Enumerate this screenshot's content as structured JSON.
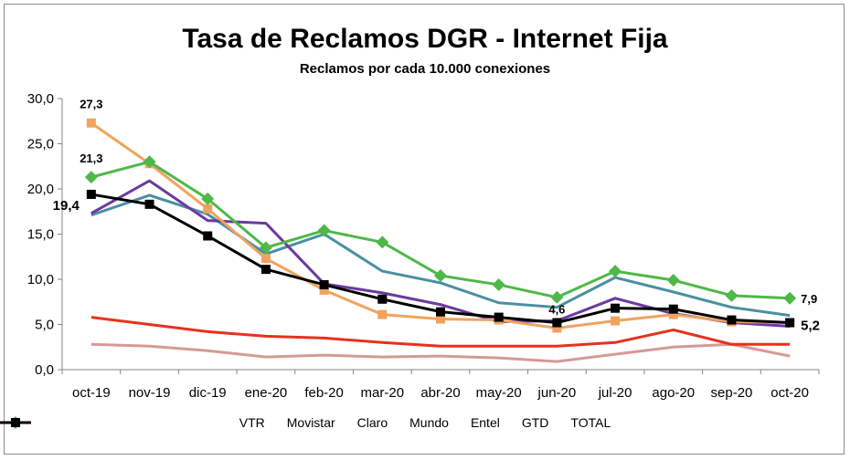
{
  "chart_data": {
    "type": "line",
    "title": "Tasa de Reclamos DGR - Internet Fija",
    "subtitle": "Reclamos por cada 10.000 conexiones",
    "xlabel": "",
    "ylabel": "",
    "categories": [
      "oct-19",
      "nov-19",
      "dic-19",
      "ene-20",
      "feb-20",
      "mar-20",
      "abr-20",
      "may-20",
      "jun-20",
      "jul-20",
      "ago-20",
      "sep-20",
      "oct-20"
    ],
    "ylim": [
      0,
      30
    ],
    "yticks": [
      "0,0",
      "5,0",
      "10,0",
      "15,0",
      "20,0",
      "25,0",
      "30,0"
    ],
    "grid": false,
    "legend_position": "bottom",
    "series": [
      {
        "name": "VTR",
        "color": "#f0a35e",
        "marker": "square",
        "values": [
          27.3,
          22.8,
          17.8,
          12.3,
          8.8,
          6.1,
          5.6,
          5.5,
          4.6,
          5.4,
          6.1,
          5.3,
          5.2
        ]
      },
      {
        "name": "Movistar",
        "color": "#4fb848",
        "marker": "diamond",
        "values": [
          21.3,
          23.0,
          18.9,
          13.5,
          15.4,
          14.1,
          10.4,
          9.4,
          8.0,
          10.9,
          9.9,
          8.2,
          7.9
        ]
      },
      {
        "name": "Claro",
        "color": "#e8311e",
        "marker": "none",
        "values": [
          5.8,
          5.0,
          4.2,
          3.7,
          3.5,
          3.0,
          2.6,
          2.6,
          2.6,
          3.0,
          4.4,
          2.8,
          2.8
        ]
      },
      {
        "name": "Mundo",
        "color": "#6a3a9e",
        "marker": "none",
        "values": [
          17.3,
          20.9,
          16.5,
          16.2,
          9.5,
          8.5,
          7.2,
          5.3,
          5.4,
          7.9,
          6.2,
          5.2,
          4.8
        ]
      },
      {
        "name": "Entel",
        "color": "#4a8fa1",
        "marker": "none",
        "values": [
          17.1,
          19.3,
          17.2,
          12.8,
          15.0,
          10.9,
          9.6,
          7.4,
          6.9,
          10.2,
          8.6,
          6.9,
          6.0
        ]
      },
      {
        "name": "GTD",
        "color": "#d59a96",
        "marker": "none",
        "values": [
          2.8,
          2.6,
          2.1,
          1.4,
          1.6,
          1.4,
          1.5,
          1.3,
          0.9,
          1.7,
          2.5,
          2.8,
          1.5
        ]
      },
      {
        "name": "TOTAL",
        "color": "#000000",
        "marker": "square",
        "values": [
          19.4,
          18.3,
          14.8,
          11.1,
          9.4,
          7.8,
          6.4,
          5.8,
          5.2,
          6.8,
          6.7,
          5.5,
          5.2
        ]
      }
    ],
    "annotations": [
      {
        "text": "27,3",
        "series": "VTR",
        "index": 0,
        "position": "above"
      },
      {
        "text": "21,3",
        "series": "Movistar",
        "index": 0,
        "position": "above"
      },
      {
        "text": "19,4",
        "series": "TOTAL",
        "index": 0,
        "position": "left"
      },
      {
        "text": "4,6",
        "series": "VTR",
        "index": 8,
        "position": "above"
      },
      {
        "text": "7,9",
        "series": "Movistar",
        "index": 12,
        "position": "right"
      },
      {
        "text": "5,2",
        "series": "TOTAL",
        "index": 12,
        "position": "right"
      }
    ]
  }
}
